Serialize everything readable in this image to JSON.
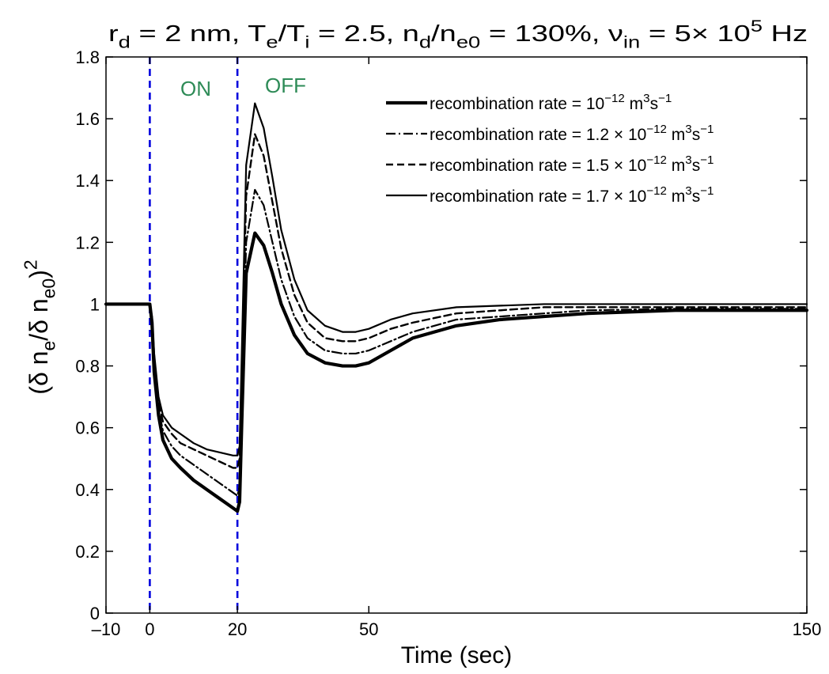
{
  "chart_data": {
    "type": "line",
    "title": {
      "parts": [
        {
          "t": "r"
        },
        {
          "t": "d",
          "s": "sub"
        },
        {
          "t": " = 2 nm, T"
        },
        {
          "t": "e",
          "s": "sub"
        },
        {
          "t": "/T"
        },
        {
          "t": "i",
          "s": "sub"
        },
        {
          "t": " = 2.5, n"
        },
        {
          "t": "d",
          "s": "sub"
        },
        {
          "t": "/n"
        },
        {
          "t": "e0",
          "s": "sub"
        },
        {
          "t": " = 130%, ν"
        },
        {
          "t": "in",
          "s": "sub"
        },
        {
          "t": " = 5× 10"
        },
        {
          "t": "5",
          "s": "sup"
        },
        {
          "t": " Hz"
        }
      ]
    },
    "xlabel": "Time (sec)",
    "ylabel": {
      "parts": [
        {
          "t": "(δ n"
        },
        {
          "t": "e",
          "s": "sub"
        },
        {
          "t": "/δ n"
        },
        {
          "t": "e0",
          "s": "sub"
        },
        {
          "t": ")"
        },
        {
          "t": "2",
          "s": "sup"
        }
      ]
    },
    "xlim": [
      -10,
      150
    ],
    "ylim": [
      0,
      1.8
    ],
    "xticks": [
      -10,
      0,
      20,
      50,
      150
    ],
    "xtick_labels": [
      "–10",
      "0",
      "20",
      "50",
      "150"
    ],
    "yticks": [
      0,
      0.2,
      0.4,
      0.6,
      0.8,
      1,
      1.2,
      1.4,
      1.6,
      1.8
    ],
    "ytick_labels": [
      "0",
      "0.2",
      "0.4",
      "0.6",
      "0.8",
      "1",
      "1.2",
      "1.4",
      "1.6",
      "1.8"
    ],
    "grid": false,
    "legend_position": "top-right",
    "vlines": [
      {
        "x": 0,
        "color": "#0000dd",
        "style": "dashed"
      },
      {
        "x": 20,
        "color": "#0000dd",
        "style": "dashed"
      }
    ],
    "phase_labels": [
      {
        "text": "ON",
        "x": 10.5,
        "y": 1.7,
        "color": "#2e8b57"
      },
      {
        "text": "OFF",
        "x": 31,
        "y": 1.71,
        "color": "#2e8b57"
      }
    ],
    "series": [
      {
        "name": "recombination rate = 10^-12 m^3s^-1",
        "legend_parts": [
          {
            "t": "recombination rate = 10"
          },
          {
            "t": "−12",
            "s": "sup"
          },
          {
            "t": " m"
          },
          {
            "t": "3",
            "s": "sup"
          },
          {
            "t": "s"
          },
          {
            "t": "−1",
            "s": "sup"
          }
        ],
        "style": "thick",
        "color": "#000000",
        "x": [
          -10,
          0,
          0.5,
          1,
          2,
          3,
          5,
          7,
          10,
          13,
          16,
          19,
          20,
          20.5,
          21,
          22,
          24,
          26,
          28,
          30,
          33,
          36,
          40,
          44,
          47,
          50,
          55,
          60,
          70,
          80,
          90,
          100,
          120,
          150
        ],
        "y": [
          1.0,
          1.0,
          0.94,
          0.78,
          0.64,
          0.56,
          0.5,
          0.47,
          0.43,
          0.4,
          0.37,
          0.34,
          0.33,
          0.36,
          0.62,
          1.1,
          1.23,
          1.19,
          1.1,
          1.0,
          0.9,
          0.84,
          0.81,
          0.8,
          0.8,
          0.81,
          0.85,
          0.89,
          0.93,
          0.95,
          0.96,
          0.97,
          0.98,
          0.98
        ]
      },
      {
        "name": "recombination rate = 1.2 × 10^-12 m^3s^-1",
        "legend_parts": [
          {
            "t": "recombination rate = 1.2 × 10"
          },
          {
            "t": "−12",
            "s": "sup"
          },
          {
            "t": " m"
          },
          {
            "t": "3",
            "s": "sup"
          },
          {
            "t": "s"
          },
          {
            "t": "−1",
            "s": "sup"
          }
        ],
        "style": "dashdot",
        "color": "#000000",
        "x": [
          -10,
          0,
          0.5,
          1,
          2,
          3,
          5,
          7,
          10,
          13,
          16,
          19,
          20,
          20.5,
          21,
          22,
          24,
          26,
          28,
          30,
          33,
          36,
          40,
          44,
          47,
          50,
          55,
          60,
          70,
          80,
          90,
          100,
          120,
          150
        ],
        "y": [
          1.0,
          1.0,
          0.94,
          0.8,
          0.66,
          0.59,
          0.54,
          0.51,
          0.48,
          0.45,
          0.42,
          0.39,
          0.38,
          0.41,
          0.68,
          1.2,
          1.37,
          1.32,
          1.2,
          1.08,
          0.96,
          0.89,
          0.85,
          0.84,
          0.84,
          0.85,
          0.88,
          0.91,
          0.95,
          0.96,
          0.97,
          0.98,
          0.985,
          0.985
        ]
      },
      {
        "name": "recombination rate = 1.5 × 10^-12 m^3s^-1",
        "legend_parts": [
          {
            "t": "recombination rate = 1.5 × 10"
          },
          {
            "t": "−12",
            "s": "sup"
          },
          {
            "t": " m"
          },
          {
            "t": "3",
            "s": "sup"
          },
          {
            "t": "s"
          },
          {
            "t": "−1",
            "s": "sup"
          }
        ],
        "style": "dashed",
        "color": "#000000",
        "x": [
          -10,
          0,
          0.5,
          1,
          2,
          3,
          5,
          7,
          10,
          13,
          16,
          19,
          20,
          20.5,
          21,
          22,
          24,
          26,
          28,
          30,
          33,
          36,
          40,
          44,
          47,
          50,
          55,
          60,
          70,
          80,
          90,
          100,
          120,
          150
        ],
        "y": [
          1.0,
          1.0,
          0.95,
          0.82,
          0.68,
          0.62,
          0.58,
          0.55,
          0.53,
          0.51,
          0.49,
          0.47,
          0.47,
          0.5,
          0.78,
          1.35,
          1.55,
          1.48,
          1.33,
          1.18,
          1.03,
          0.94,
          0.89,
          0.88,
          0.88,
          0.89,
          0.92,
          0.94,
          0.97,
          0.98,
          0.99,
          0.99,
          0.99,
          0.99
        ]
      },
      {
        "name": "recombination rate = 1.7 × 10^-12 m^3s^-1",
        "legend_parts": [
          {
            "t": "recombination rate = 1.7 × 10"
          },
          {
            "t": "−12",
            "s": "sup"
          },
          {
            "t": " m"
          },
          {
            "t": "3",
            "s": "sup"
          },
          {
            "t": "s"
          },
          {
            "t": "−1",
            "s": "sup"
          }
        ],
        "style": "thin",
        "color": "#000000",
        "x": [
          -10,
          0,
          0.5,
          1,
          2,
          3,
          5,
          7,
          10,
          13,
          16,
          19,
          20,
          20.5,
          21,
          22,
          24,
          26,
          28,
          30,
          33,
          36,
          40,
          44,
          47,
          50,
          55,
          60,
          70,
          80,
          90,
          100,
          120,
          150
        ],
        "y": [
          1.0,
          1.0,
          0.96,
          0.84,
          0.7,
          0.64,
          0.6,
          0.58,
          0.55,
          0.53,
          0.52,
          0.51,
          0.51,
          0.54,
          0.84,
          1.45,
          1.65,
          1.57,
          1.41,
          1.24,
          1.08,
          0.98,
          0.93,
          0.91,
          0.91,
          0.92,
          0.95,
          0.97,
          0.99,
          0.995,
          1.0,
          1.0,
          1.0,
          1.0
        ]
      }
    ]
  }
}
